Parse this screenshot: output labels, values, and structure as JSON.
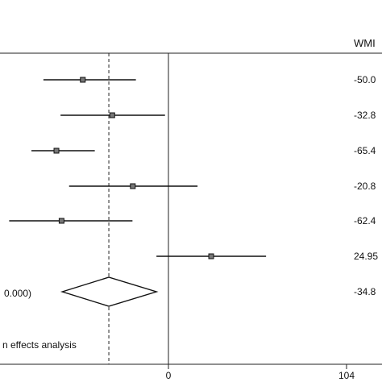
{
  "chart_data": {
    "type": "forest",
    "column_header": "WMI",
    "x_axis": {
      "ticks": [
        -104,
        0,
        104
      ],
      "tick_labels": [
        "",
        "0",
        "104"
      ],
      "range": [
        -90,
        104
      ]
    },
    "reference_line": 0,
    "pooled_line": -34.8,
    "studies": [
      {
        "estimate": -50.0,
        "lower": -73,
        "upper": -19,
        "label": "-50.0"
      },
      {
        "estimate": -32.8,
        "lower": -63,
        "upper": -2,
        "label": "-32.8"
      },
      {
        "estimate": -65.4,
        "lower": -80,
        "upper": -43,
        "label": "-65.4"
      },
      {
        "estimate": -20.8,
        "lower": -58,
        "upper": 17,
        "label": "-20.8"
      },
      {
        "estimate": -62.4,
        "lower": -93,
        "upper": -21,
        "label": "-62.4"
      },
      {
        "estimate": 24.95,
        "lower": -7,
        "upper": 57,
        "label": "24.95"
      }
    ],
    "pooled": {
      "estimate": -34.8,
      "lower": -62,
      "upper": -7,
      "label": "-34.8"
    },
    "pooled_text": "0.000)",
    "footer_text": "n effects analysis"
  }
}
